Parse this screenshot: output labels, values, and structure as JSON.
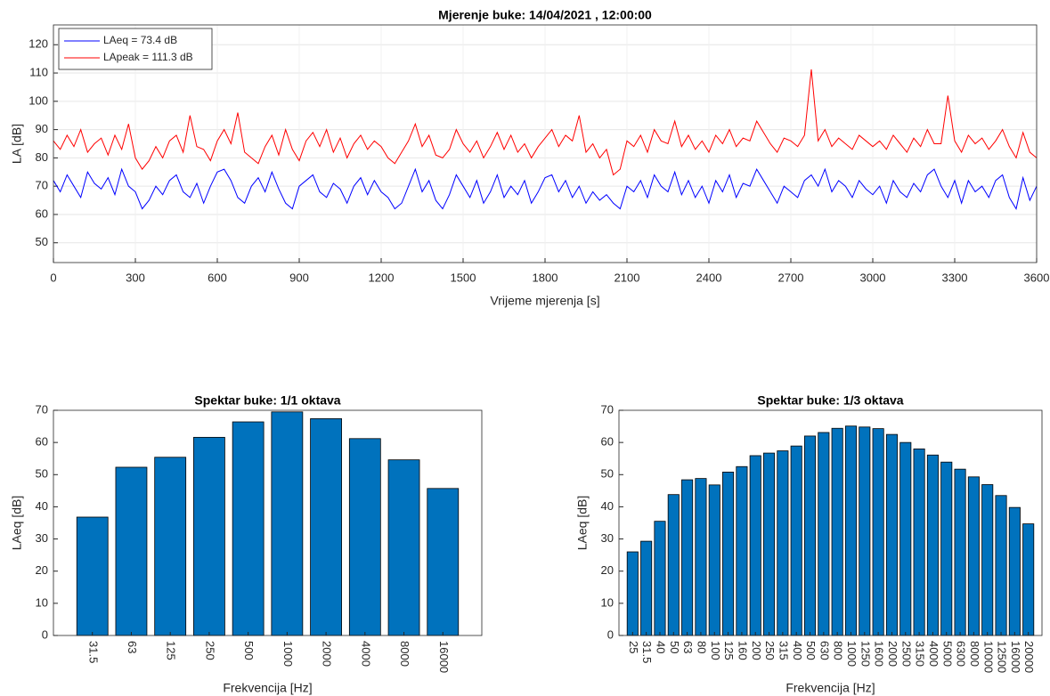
{
  "chart_data": [
    {
      "type": "line",
      "title": "Mjerenje buke: 14/04/2021 ,  12:00:00",
      "x_label": "Vrijeme mjerenja [s]",
      "y_label": "LA [dB]",
      "x": [
        0,
        25,
        50,
        75,
        100,
        125,
        150,
        175,
        200,
        225,
        250,
        275,
        300,
        325,
        350,
        375,
        400,
        425,
        450,
        475,
        500,
        525,
        550,
        575,
        600,
        625,
        650,
        675,
        700,
        725,
        750,
        775,
        800,
        825,
        850,
        875,
        900,
        925,
        950,
        975,
        1000,
        1025,
        1050,
        1075,
        1100,
        1125,
        1150,
        1175,
        1200,
        1225,
        1250,
        1275,
        1300,
        1325,
        1350,
        1375,
        1400,
        1425,
        1450,
        1475,
        1500,
        1525,
        1550,
        1575,
        1600,
        1625,
        1650,
        1675,
        1700,
        1725,
        1750,
        1775,
        1800,
        1825,
        1850,
        1875,
        1900,
        1925,
        1950,
        1975,
        2000,
        2025,
        2050,
        2075,
        2100,
        2125,
        2150,
        2175,
        2200,
        2225,
        2250,
        2275,
        2300,
        2325,
        2350,
        2375,
        2400,
        2425,
        2450,
        2475,
        2500,
        2525,
        2550,
        2575,
        2600,
        2625,
        2650,
        2675,
        2700,
        2725,
        2750,
        2775,
        2800,
        2825,
        2850,
        2875,
        2900,
        2925,
        2950,
        2975,
        3000,
        3025,
        3050,
        3075,
        3100,
        3125,
        3150,
        3175,
        3200,
        3225,
        3250,
        3275,
        3300,
        3325,
        3350,
        3375,
        3400,
        3425,
        3450,
        3475,
        3500,
        3525,
        3550,
        3575,
        3600
      ],
      "series": [
        {
          "name": "LAeq = 73.4 dB",
          "color": "#0000ff",
          "values": [
            72,
            68,
            74,
            70,
            66,
            75,
            71,
            69,
            73,
            67,
            76,
            70,
            68,
            62,
            65,
            70,
            67,
            72,
            74,
            68,
            66,
            71,
            64,
            70,
            75,
            76,
            72,
            66,
            64,
            70,
            73,
            68,
            75,
            69,
            64,
            62,
            70,
            72,
            74,
            68,
            66,
            71,
            69,
            64,
            70,
            73,
            67,
            72,
            68,
            66,
            62,
            64,
            70,
            76,
            68,
            72,
            65,
            62,
            67,
            74,
            70,
            66,
            72,
            64,
            68,
            74,
            66,
            70,
            67,
            72,
            64,
            68,
            73,
            74,
            68,
            72,
            66,
            70,
            64,
            68,
            65,
            67,
            64,
            62,
            70,
            68,
            72,
            66,
            74,
            70,
            68,
            75,
            67,
            72,
            66,
            70,
            64,
            72,
            68,
            74,
            66,
            71,
            70,
            76,
            72,
            68,
            64,
            70,
            68,
            66,
            72,
            74,
            70,
            76,
            68,
            72,
            70,
            66,
            72,
            69,
            67,
            70,
            64,
            72,
            68,
            66,
            71,
            68,
            74,
            76,
            70,
            66,
            72,
            64,
            72,
            68,
            70,
            66,
            72,
            74,
            66,
            62,
            73,
            65,
            70
          ]
        },
        {
          "name": "LApeak = 111.3 dB",
          "color": "#ff0000",
          "values": [
            86,
            83,
            88,
            84,
            90,
            82,
            85,
            87,
            81,
            88,
            83,
            92,
            80,
            76,
            79,
            84,
            80,
            86,
            88,
            82,
            95,
            84,
            83,
            79,
            86,
            90,
            85,
            96,
            82,
            80,
            78,
            84,
            88,
            81,
            90,
            83,
            79,
            86,
            89,
            84,
            90,
            82,
            87,
            80,
            85,
            88,
            83,
            86,
            84,
            80,
            78,
            82,
            86,
            92,
            84,
            88,
            81,
            80,
            83,
            90,
            85,
            82,
            86,
            80,
            84,
            89,
            83,
            88,
            82,
            85,
            80,
            84,
            87,
            90,
            84,
            88,
            86,
            95,
            82,
            85,
            80,
            83,
            74,
            76,
            86,
            84,
            88,
            82,
            90,
            86,
            85,
            93,
            84,
            88,
            83,
            86,
            82,
            88,
            85,
            90,
            84,
            87,
            86,
            93,
            89,
            85,
            82,
            87,
            86,
            84,
            88,
            111.3,
            86,
            90,
            84,
            87,
            85,
            83,
            88,
            86,
            84,
            86,
            83,
            88,
            85,
            82,
            87,
            84,
            90,
            85,
            85,
            102,
            86,
            82,
            88,
            85,
            87,
            83,
            86,
            90,
            84,
            80,
            89,
            82,
            80
          ]
        }
      ],
      "xlim": [
        0,
        3600
      ],
      "xticks": [
        0,
        300,
        600,
        900,
        1200,
        1500,
        1800,
        2100,
        2400,
        2700,
        3000,
        3300,
        3600
      ],
      "ylim": [
        43,
        127
      ],
      "yticks": [
        50,
        60,
        70,
        80,
        90,
        100,
        110,
        120
      ],
      "grid": true,
      "legend": "top-left"
    },
    {
      "type": "bar",
      "title": "Spektar buke: 1/1 oktava",
      "x_label": "Frekvencija [Hz]",
      "y_label": "LAeq [dB]",
      "categories": [
        "31.5",
        "63",
        "125",
        "250",
        "500",
        "1000",
        "2000",
        "4000",
        "8000",
        "16000"
      ],
      "values": [
        36.8,
        52.3,
        55.4,
        61.6,
        66.4,
        69.5,
        67.4,
        61.2,
        54.6,
        45.7
      ],
      "color": "#0072bd",
      "ylim": [
        0,
        70
      ],
      "yticks": [
        0,
        10,
        20,
        30,
        40,
        50,
        60,
        70
      ]
    },
    {
      "type": "bar",
      "title": "Spektar buke: 1/3 oktava",
      "x_label": "Frekvencija [Hz]",
      "y_label": "LAeq [dB]",
      "categories": [
        "25",
        "31.5",
        "40",
        "50",
        "63",
        "80",
        "100",
        "125",
        "160",
        "200",
        "250",
        "315",
        "400",
        "500",
        "630",
        "800",
        "1000",
        "1250",
        "1600",
        "2000",
        "2500",
        "3150",
        "4000",
        "5000",
        "6300",
        "8000",
        "10000",
        "12500",
        "16000",
        "20000"
      ],
      "values": [
        26,
        29.3,
        35.5,
        43.8,
        48.4,
        48.8,
        46.8,
        50.8,
        52.5,
        55.9,
        56.7,
        57.4,
        58.9,
        62,
        63.1,
        64.4,
        65.1,
        64.8,
        64.3,
        62.5,
        60,
        58,
        56.1,
        53.9,
        51.7,
        49.3,
        46.9,
        43.5,
        39.8,
        34.7
      ],
      "color": "#0072bd",
      "ylim": [
        0,
        70
      ],
      "yticks": [
        0,
        10,
        20,
        30,
        40,
        50,
        60,
        70
      ]
    }
  ]
}
